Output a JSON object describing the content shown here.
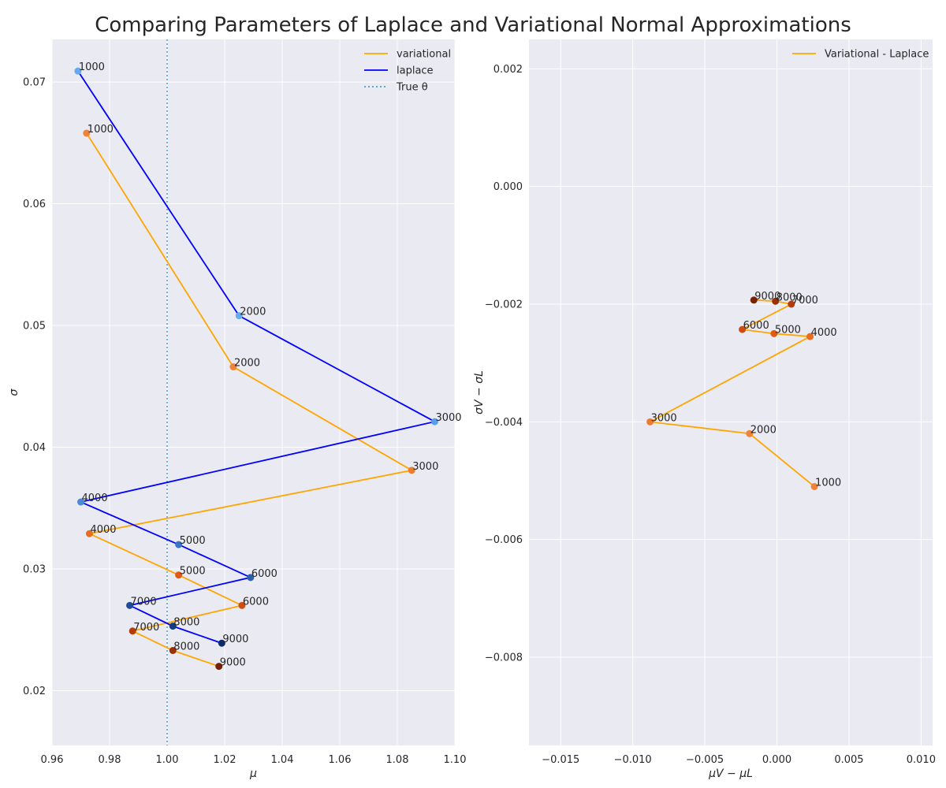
{
  "title": "Comparing Parameters of Laplace and Variational Normal Approximations",
  "chart_data": [
    {
      "type": "line",
      "xlabel": "μ",
      "ylabel": "σ",
      "xlim": [
        0.96,
        1.1
      ],
      "ylim": [
        0.0155,
        0.0735
      ],
      "xticks": [
        0.96,
        0.98,
        1.0,
        1.02,
        1.04,
        1.06,
        1.08,
        1.1
      ],
      "xtick_labels": [
        "0.96",
        "0.98",
        "1.00",
        "1.02",
        "1.04",
        "1.06",
        "1.08",
        "1.10"
      ],
      "yticks": [
        0.02,
        0.03,
        0.04,
        0.05,
        0.06,
        0.07
      ],
      "ytick_labels": [
        "0.02",
        "0.03",
        "0.04",
        "0.05",
        "0.06",
        "0.07"
      ],
      "grid": true,
      "legend_position": "top-right",
      "vline": {
        "name": "True θ",
        "x": 1.0,
        "color": "#4c9ec9"
      },
      "series": [
        {
          "name": "variational",
          "color": "#ffa500",
          "labels": [
            "1000",
            "2000",
            "3000",
            "4000",
            "5000",
            "6000",
            "7000",
            "8000",
            "9000"
          ],
          "x": [
            0.972,
            1.023,
            1.085,
            0.973,
            1.004,
            1.026,
            0.988,
            1.002,
            1.018
          ],
          "y": [
            0.0658,
            0.0466,
            0.0381,
            0.0329,
            0.0295,
            0.027,
            0.0249,
            0.0233,
            0.022
          ],
          "point_colors": [
            "#f0833a",
            "#f0833a",
            "#ec7c30",
            "#e86d20",
            "#e05a14",
            "#cf4d10",
            "#b53c08",
            "#9a3006",
            "#7a2104"
          ]
        },
        {
          "name": "laplace",
          "color": "#0000ff",
          "labels": [
            "1000",
            "2000",
            "3000",
            "4000",
            "5000",
            "6000",
            "7000",
            "8000",
            "9000"
          ],
          "x": [
            0.969,
            1.025,
            1.093,
            0.97,
            1.004,
            1.029,
            0.987,
            1.002,
            1.019
          ],
          "y": [
            0.0709,
            0.0508,
            0.0421,
            0.0355,
            0.032,
            0.0293,
            0.027,
            0.0253,
            0.0239
          ],
          "point_colors": [
            "#66aaf0",
            "#66aaf0",
            "#5a9ee8",
            "#4a8ad8",
            "#3a74c4",
            "#2c60ae",
            "#1f4c96",
            "#163c80",
            "#0e2c68"
          ]
        }
      ]
    },
    {
      "type": "line",
      "xlabel": "μV − μL",
      "ylabel": "σV − σL",
      "xlim": [
        -0.0172,
        0.0108
      ],
      "ylim": [
        -0.0095,
        0.0025
      ],
      "xticks": [
        -0.015,
        -0.01,
        -0.005,
        0.0,
        0.005,
        0.01
      ],
      "xtick_labels": [
        "−0.015",
        "−0.010",
        "−0.005",
        "0.000",
        "0.005",
        "0.010"
      ],
      "yticks": [
        -0.008,
        -0.006,
        -0.004,
        -0.002,
        0.0,
        0.002
      ],
      "ytick_labels": [
        "−0.008",
        "−0.006",
        "−0.004",
        "−0.002",
        "0.000",
        "0.002"
      ],
      "grid": true,
      "legend_position": "top-right",
      "series": [
        {
          "name": "Variational - Laplace",
          "color": "#ffa500",
          "labels": [
            "1000",
            "2000",
            "3000",
            "4000",
            "5000",
            "6000",
            "7000",
            "8000",
            "9000"
          ],
          "x": [
            0.0026,
            -0.0019,
            -0.0088,
            0.0023,
            -0.0002,
            -0.0024,
            0.001,
            -0.0001,
            -0.0016
          ],
          "y": [
            -0.0051,
            -0.0042,
            -0.004,
            -0.00255,
            -0.0025,
            -0.00243,
            -0.002,
            -0.00195,
            -0.00193
          ],
          "point_colors": [
            "#f0833a",
            "#f0833a",
            "#ec7c30",
            "#e86d20",
            "#e05a14",
            "#cf4d10",
            "#b53c08",
            "#9a3006",
            "#7a2104"
          ]
        }
      ]
    }
  ]
}
